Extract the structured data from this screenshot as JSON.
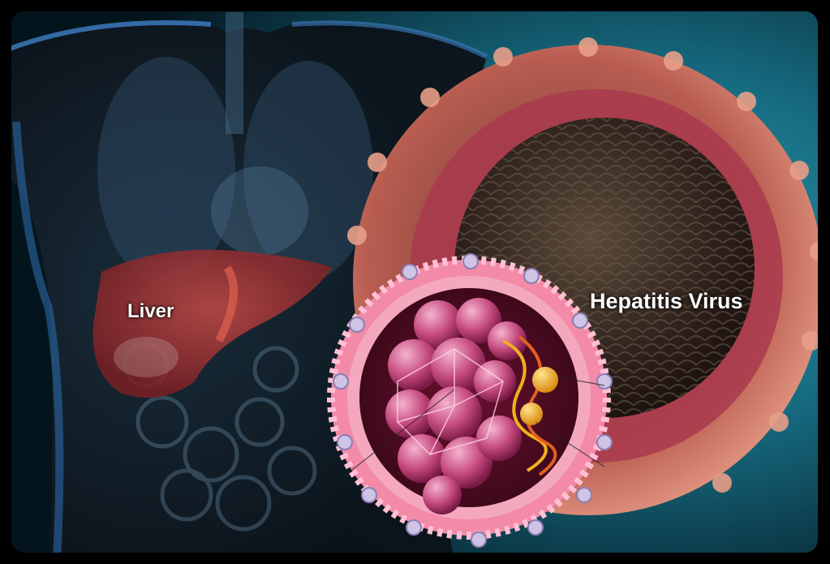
{
  "labels": {
    "liver": "Liver",
    "virus": "Hepatitis Virus"
  },
  "colors": {
    "frame": "#000000",
    "background_teal": "#1e7f93",
    "body_blue": "#2b5f9a",
    "liver_red": "#a8363a",
    "virus_outer": "#c86a5c",
    "capsid_dark": "#3b2a24",
    "membrane_pink": "#f07aa0",
    "core_magenta": "#b8356c",
    "dna_gold": "#e8a11a",
    "label_text": "#ffffff"
  }
}
